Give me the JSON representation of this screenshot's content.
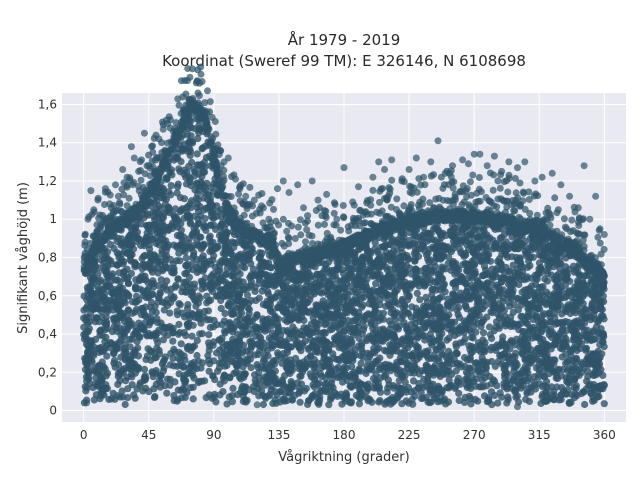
{
  "chart_data": {
    "type": "scatter",
    "title_lines": [
      "År 1979 - 2019",
      "Koordinat (Sweref 99 TM): E 326146, N 6108698"
    ],
    "xlabel": "Vågriktning (grader)",
    "ylabel": "Signifikant våghöjd (m)",
    "xlim": [
      -15,
      375
    ],
    "ylim": [
      -0.06,
      1.66
    ],
    "x_ticks": [
      0,
      45,
      90,
      135,
      180,
      225,
      270,
      315,
      360
    ],
    "x_tick_labels": [
      "0",
      "45",
      "90",
      "135",
      "180",
      "225",
      "270",
      "315",
      "360"
    ],
    "y_ticks": [
      0,
      0.2,
      0.4,
      0.6,
      0.8,
      1.0,
      1.2,
      1.4,
      1.6
    ],
    "y_tick_labels": [
      "0",
      "0,2",
      "0,4",
      "0,6",
      "0,8",
      "1",
      "1,2",
      "1,4",
      "1,6"
    ],
    "grid": true,
    "background_color": "#e8e9f1",
    "marker_color": "#2f5469",
    "envelope": {
      "x": [
        0,
        10,
        20,
        30,
        40,
        50,
        60,
        65,
        70,
        75,
        80,
        85,
        90,
        95,
        100,
        105,
        110,
        120,
        130,
        135,
        140,
        150,
        160,
        170,
        180,
        190,
        200,
        210,
        220,
        230,
        240,
        250,
        260,
        270,
        280,
        290,
        300,
        310,
        320,
        330,
        340,
        345,
        350,
        355,
        360
      ],
      "y_max": [
        0.75,
        0.9,
        0.97,
        1.02,
        1.1,
        1.22,
        1.38,
        1.47,
        1.55,
        1.6,
        1.61,
        1.52,
        1.35,
        1.18,
        1.07,
        1.0,
        0.97,
        0.93,
        0.9,
        0.78,
        0.8,
        0.82,
        0.84,
        0.86,
        0.88,
        0.92,
        0.95,
        0.98,
        1.0,
        1.02,
        1.03,
        1.04,
        1.04,
        1.03,
        1.03,
        1.02,
        1.0,
        0.98,
        0.95,
        0.9,
        0.86,
        0.82,
        0.78,
        0.76,
        0.72
      ]
    },
    "outliers": [
      [
        1,
        0.88
      ],
      [
        3,
        1.0
      ],
      [
        5,
        1.15
      ],
      [
        7,
        1.05
      ],
      [
        10,
        1.11
      ],
      [
        13,
        1.02
      ],
      [
        15,
        1.16
      ],
      [
        18,
        1.08
      ],
      [
        22,
        1.18
      ],
      [
        24,
        1.12
      ],
      [
        27,
        1.26
      ],
      [
        30,
        1.22
      ],
      [
        33,
        1.38
      ],
      [
        35,
        1.32
      ],
      [
        38,
        1.25
      ],
      [
        40,
        1.31
      ],
      [
        42,
        1.45
      ],
      [
        45,
        1.28
      ],
      [
        47,
        1.38
      ],
      [
        50,
        1.44
      ],
      [
        52,
        1.42
      ],
      [
        55,
        1.47
      ],
      [
        58,
        1.5
      ],
      [
        60,
        1.52
      ],
      [
        95,
        1.28
      ],
      [
        97,
        1.3
      ],
      [
        100,
        1.32
      ],
      [
        105,
        1.21
      ],
      [
        108,
        1.16
      ],
      [
        112,
        1.12
      ],
      [
        118,
        1.1
      ],
      [
        123,
        1.07
      ],
      [
        128,
        1.0
      ],
      [
        134,
        1.16
      ],
      [
        138,
        1.2
      ],
      [
        142,
        1.14
      ],
      [
        148,
        1.18
      ],
      [
        152,
        1.06
      ],
      [
        158,
        1.2
      ],
      [
        162,
        1.1
      ],
      [
        168,
        1.13
      ],
      [
        175,
        1.0
      ],
      [
        180,
        1.27
      ],
      [
        186,
        1.09
      ],
      [
        190,
        1.17
      ],
      [
        195,
        1.04
      ],
      [
        200,
        1.22
      ],
      [
        204,
        1.3
      ],
      [
        208,
        1.26
      ],
      [
        213,
        1.31
      ],
      [
        220,
        1.2
      ],
      [
        225,
        1.26
      ],
      [
        230,
        1.32
      ],
      [
        235,
        1.22
      ],
      [
        240,
        1.3
      ],
      [
        245,
        1.41
      ],
      [
        250,
        1.24
      ],
      [
        255,
        1.28
      ],
      [
        262,
        1.31
      ],
      [
        266,
        1.29
      ],
      [
        270,
        1.34
      ],
      [
        274,
        1.34
      ],
      [
        279,
        1.28
      ],
      [
        284,
        1.33
      ],
      [
        289,
        1.25
      ],
      [
        294,
        1.3
      ],
      [
        300,
        1.27
      ],
      [
        305,
        1.3
      ],
      [
        312,
        1.2
      ],
      [
        317,
        1.22
      ],
      [
        324,
        1.24
      ],
      [
        330,
        1.18
      ],
      [
        336,
        1.12
      ],
      [
        342,
        1.06
      ],
      [
        346,
        1.28
      ],
      [
        350,
        1.0
      ],
      [
        354,
        1.12
      ],
      [
        357,
        0.95
      ],
      [
        360,
        0.92
      ],
      [
        2,
        0.04
      ],
      [
        300,
        0.02
      ],
      [
        120,
        0.03
      ]
    ],
    "legend": "none"
  }
}
